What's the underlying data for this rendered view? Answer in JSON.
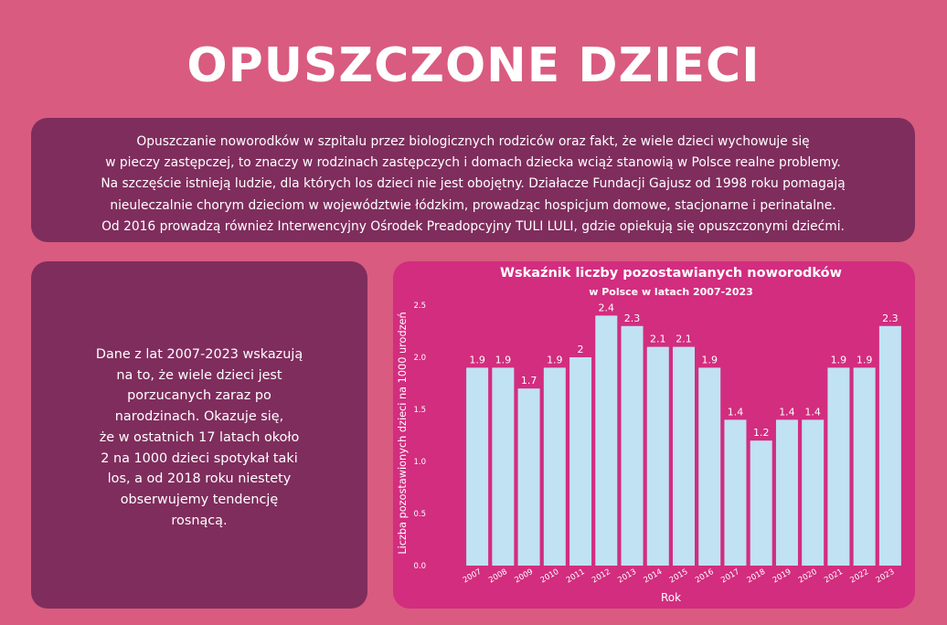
{
  "page": {
    "title": "OPUSZCZONE DZIECI",
    "intro_lines": [
      "Opuszczanie noworodków w szpitalu przez biologicznych rodziców oraz fakt, że wiele dzieci wychowuje się",
      "w pieczy zastępczej, to znaczy w rodzinach zastępczych i domach dziecka wciąż stanowią w Polsce realne problemy.",
      "Na szczęście istnieją ludzie, dla których los dzieci nie jest obojętny. Działacze Fundacji Gajusz od 1998 roku pomagają",
      "nieuleczalnie chorym dzieciom w województwie łódzkim, prowadząc hospicjum domowe, stacjonarne i perinatalne.",
      "Od 2016 prowadzą również Interwencyjny Ośrodek Preadopcyjny TULI LULI, gdzie opiekują się opuszczonymi dziećmi."
    ],
    "side_lines": [
      "Dane z lat 2007-2023 wskazują",
      "na to, że wiele dzieci jest",
      "porzucanych zaraz po",
      "narodzinach. Okazuje się,",
      "że w ostatnich 17 latach około",
      "2 na 1000 dzieci spotykał taki",
      "los, a od 2018 roku niestety",
      "obserwujemy tendencję",
      "rosnącą."
    ],
    "colors": {
      "background": "#d95b80",
      "panel": "#7f2d5d",
      "chart_panel": "#d22d7f",
      "bar": "#c0e2f3",
      "text": "#ffffff"
    }
  },
  "chart_data": {
    "type": "bar",
    "title": "Wskaźnik liczby pozostawianych noworodków",
    "subtitle": "w Polsce w latach 2007-2023",
    "xlabel": "Rok",
    "ylabel": "Liczba pozostawionych dzieci na 1000 urodzeń",
    "categories": [
      "2007",
      "2008",
      "2009",
      "2010",
      "2011",
      "2012",
      "2013",
      "2014",
      "2015",
      "2016",
      "2017",
      "2018",
      "2019",
      "2020",
      "2021",
      "2022",
      "2023"
    ],
    "values": [
      1.9,
      1.9,
      1.7,
      1.9,
      2,
      2.4,
      2.3,
      2.1,
      2.1,
      1.9,
      1.4,
      1.2,
      1.4,
      1.4,
      1.9,
      1.9,
      2.3
    ],
    "value_labels": [
      "1.9",
      "1.9",
      "1.7",
      "1.9",
      "2",
      "2.4",
      "2.3",
      "2.1",
      "2.1",
      "1.9",
      "1.4",
      "1.2",
      "1.4",
      "1.4",
      "1.9",
      "1.9",
      "2.3"
    ],
    "yticks": [
      "0.0",
      "0.5",
      "1.0",
      "1.5",
      "2.0",
      "2.5"
    ],
    "ytick_values": [
      0,
      0.5,
      1,
      1.5,
      2,
      2.5
    ],
    "ylim": [
      0,
      2.5
    ],
    "grid": false,
    "legend": "none"
  }
}
